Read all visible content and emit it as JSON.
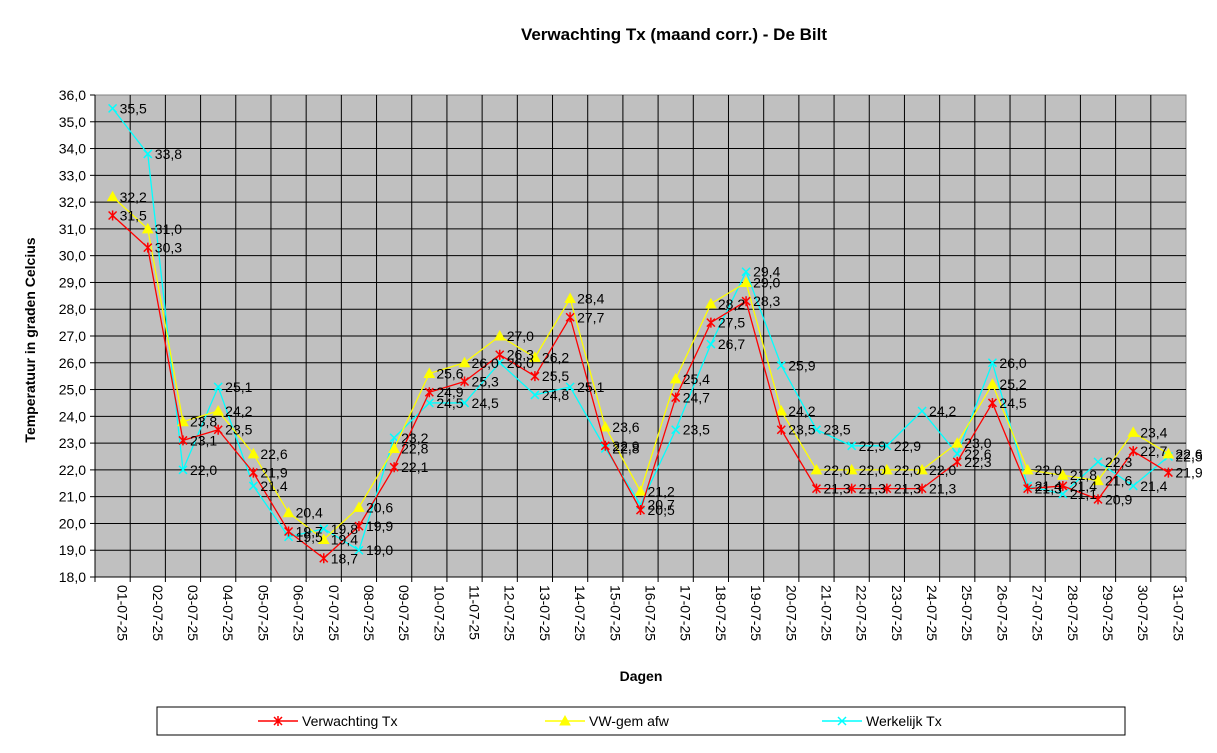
{
  "chart_data": {
    "type": "line",
    "title": "Verwachting Tx (maand corr.) - De Bilt",
    "xlabel": "Dagen",
    "ylabel": "Temperatuur in graden Celcius",
    "ylim": [
      18.0,
      36.0
    ],
    "ytick_step": 1.0,
    "grid": true,
    "legend_position": "bottom",
    "categories": [
      "01-07-25",
      "02-07-25",
      "03-07-25",
      "04-07-25",
      "05-07-25",
      "06-07-25",
      "07-07-25",
      "08-07-25",
      "09-07-25",
      "10-07-25",
      "11-07-25",
      "12-07-25",
      "13-07-25",
      "14-07-25",
      "15-07-25",
      "16-07-25",
      "17-07-25",
      "18-07-25",
      "19-07-25",
      "20-07-25",
      "21-07-25",
      "22-07-25",
      "23-07-25",
      "24-07-25",
      "25-07-25",
      "26-07-25",
      "27-07-25",
      "28-07-25",
      "29-07-25",
      "30-07-25",
      "31-07-25"
    ],
    "series": [
      {
        "name": "Verwachting Tx",
        "color": "#ff0000",
        "marker": "star",
        "values": [
          31.5,
          30.3,
          23.1,
          23.5,
          21.9,
          19.7,
          18.7,
          19.9,
          22.1,
          24.9,
          25.3,
          26.3,
          25.5,
          27.7,
          22.9,
          20.5,
          24.7,
          27.5,
          28.3,
          23.5,
          21.3,
          21.3,
          21.3,
          21.3,
          22.3,
          24.5,
          21.3,
          21.4,
          20.9,
          22.7,
          21.9
        ]
      },
      {
        "name": "VW-gem afw",
        "color": "#ffff00",
        "marker": "triangle",
        "values": [
          32.2,
          31.0,
          23.8,
          24.2,
          22.6,
          20.4,
          19.4,
          20.6,
          22.8,
          25.6,
          26.0,
          27.0,
          26.2,
          28.4,
          23.6,
          21.2,
          25.4,
          28.2,
          29.0,
          24.2,
          22.0,
          22.0,
          22.0,
          22.0,
          23.0,
          25.2,
          22.0,
          21.8,
          21.6,
          23.4,
          22.6
        ]
      },
      {
        "name": "Werkelijk Tx",
        "color": "#00ffff",
        "marker": "x",
        "values": [
          35.5,
          33.8,
          22.0,
          25.1,
          21.4,
          19.5,
          19.8,
          19.0,
          23.2,
          24.5,
          24.5,
          26.0,
          24.8,
          25.1,
          22.8,
          20.7,
          23.5,
          26.7,
          29.4,
          25.9,
          23.5,
          22.9,
          22.9,
          24.2,
          22.6,
          26.0,
          21.4,
          21.1,
          22.3,
          21.4,
          22.5
        ]
      }
    ]
  }
}
